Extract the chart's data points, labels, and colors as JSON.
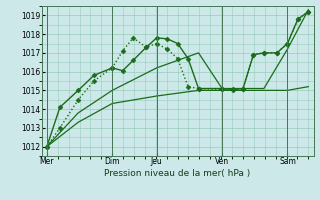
{
  "bg_color": "#cce8e8",
  "grid_color": "#99ccbb",
  "line_color": "#1a6b1a",
  "xlabel": "Pression niveau de la mer( hPa )",
  "ylim": [
    1011.5,
    1019.5
  ],
  "yticks": [
    1012,
    1013,
    1014,
    1015,
    1016,
    1017,
    1018,
    1019
  ],
  "day_labels": [
    "Mer",
    "Dim",
    "Jeu",
    "Ven",
    "Sam"
  ],
  "day_positions": [
    0.0,
    0.25,
    0.42,
    0.67,
    0.92
  ],
  "vline_positions": [
    0.0,
    0.25,
    0.42,
    0.67,
    0.92
  ],
  "series": [
    {
      "x": [
        0.0,
        0.05,
        0.12,
        0.18,
        0.25,
        0.29,
        0.33,
        0.38,
        0.42,
        0.46,
        0.5,
        0.54,
        0.58,
        0.67,
        0.71,
        0.75,
        0.79,
        0.83,
        0.88,
        0.92,
        0.96,
        1.0
      ],
      "y": [
        1012.0,
        1014.1,
        1015.0,
        1015.8,
        1016.2,
        1016.05,
        1016.6,
        1017.3,
        1017.8,
        1017.75,
        1017.5,
        1016.7,
        1015.1,
        1015.1,
        1015.05,
        1015.1,
        1016.9,
        1017.0,
        1017.0,
        1017.5,
        1018.8,
        1019.2
      ],
      "marker": "D",
      "markersize": 2.5,
      "linewidth": 1.0,
      "linestyle": "-"
    },
    {
      "x": [
        0.0,
        0.05,
        0.12,
        0.18,
        0.25,
        0.29,
        0.33,
        0.38,
        0.42,
        0.46,
        0.5,
        0.54,
        0.58,
        0.67,
        0.71,
        0.75,
        0.79,
        0.83,
        0.88,
        0.92,
        0.96,
        1.0
      ],
      "y": [
        1012.0,
        1013.0,
        1014.5,
        1015.5,
        1016.2,
        1017.1,
        1017.8,
        1017.3,
        1017.5,
        1017.2,
        1016.7,
        1015.2,
        1015.1,
        1015.05,
        1015.0,
        1015.1,
        1016.9,
        1017.0,
        1017.0,
        1017.5,
        1018.8,
        1019.2
      ],
      "marker": "D",
      "markersize": 2.5,
      "linewidth": 1.0,
      "linestyle": ":"
    },
    {
      "x": [
        0.0,
        0.12,
        0.25,
        0.42,
        0.58,
        0.67,
        0.83,
        0.92,
        1.0
      ],
      "y": [
        1012.0,
        1013.8,
        1015.0,
        1016.2,
        1017.0,
        1015.1,
        1015.1,
        1017.2,
        1019.3
      ],
      "marker": null,
      "markersize": 0,
      "linewidth": 0.9,
      "linestyle": "-"
    },
    {
      "x": [
        0.0,
        0.12,
        0.25,
        0.42,
        0.58,
        0.67,
        0.83,
        0.92,
        1.0
      ],
      "y": [
        1012.0,
        1013.3,
        1014.3,
        1014.7,
        1015.0,
        1015.0,
        1015.0,
        1015.0,
        1015.2
      ],
      "marker": null,
      "markersize": 0,
      "linewidth": 0.9,
      "linestyle": "-"
    }
  ]
}
